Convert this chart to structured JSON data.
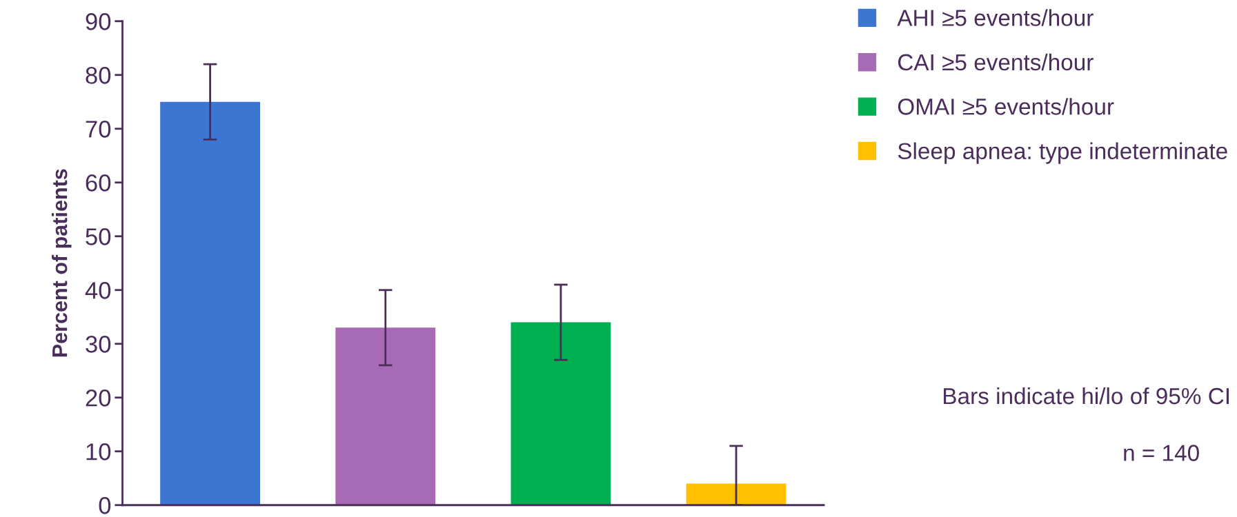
{
  "chart_data": {
    "type": "bar",
    "ylabel": "Percent of patients",
    "categories": [
      null,
      null,
      null,
      null
    ],
    "series": [
      {
        "name": "AHI ≥5 events/hour",
        "color": "#3c76d2",
        "values": [
          75,
          null,
          null,
          null
        ],
        "errors": [
          [
            68,
            82
          ],
          null,
          null,
          null
        ]
      },
      {
        "name": "CAI ≥5 events/hour",
        "color": "#a66bb4",
        "values": [
          null,
          33,
          null,
          null
        ],
        "errors": [
          null,
          [
            26,
            40
          ],
          null,
          null
        ]
      },
      {
        "name": "OMAI ≥5 events/hour",
        "color": "#00b050",
        "values": [
          null,
          null,
          34,
          null
        ],
        "errors": [
          null,
          null,
          [
            27,
            41
          ],
          null
        ]
      },
      {
        "name": "Sleep apnea: type indeterminate",
        "color": "#ffc000",
        "values": [
          null,
          null,
          null,
          4
        ],
        "errors": [
          null,
          null,
          null,
          [
            0,
            11
          ]
        ]
      }
    ],
    "ylim": [
      0,
      90
    ],
    "yticks": [
      0,
      10,
      20,
      30,
      40,
      50,
      60,
      70,
      80,
      90
    ],
    "legend": "top right",
    "grid": false,
    "annotations": [
      "Bars indicate hi/lo of 95% CI",
      "n = 140"
    ]
  }
}
